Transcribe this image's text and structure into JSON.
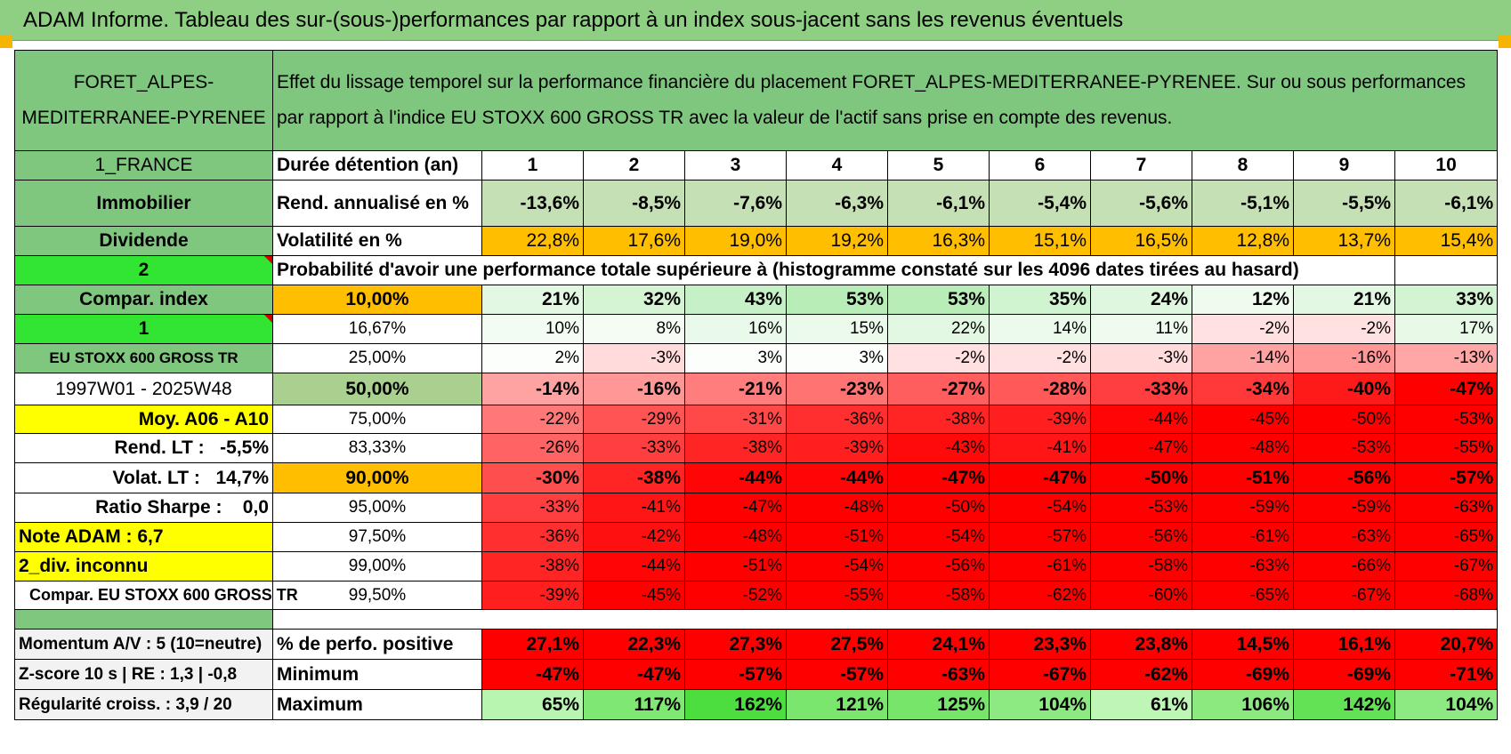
{
  "title": "ADAM Informe. Tableau des sur-(sous-)performances par rapport à un index sous-jacent sans les revenus éventuels",
  "fund_name": "FORET_ALPES-MEDITERRANEE-PYRENEE",
  "description": "Effet du lissage temporel sur la performance financière du placement FORET_ALPES-MEDITERRANEE-PYRENEE. Sur ou sous performances par rapport à l'indice EU STOXX 600 GROSS TR avec la valeur de l'actif sans prise en compte des revenus.",
  "left": {
    "country": "1_FRANCE",
    "category": "Immobilier",
    "dividend": "Dividende",
    "selector1": "2",
    "compar_index": "Compar. index",
    "selector2": "1",
    "index_name": "EU STOXX 600 GROSS TR",
    "period": "1997W01 - 2025W48",
    "moy": "Moy. A06 - A10",
    "rend_lt_label": "Rend. LT :",
    "rend_lt_value": "-5,5%",
    "volat_lt_label": "Volat. LT :",
    "volat_lt_value": "14,7%",
    "sharpe_label": "Ratio Sharpe :",
    "sharpe_value": "0,0",
    "note": "Note ADAM : 6,7",
    "div": "2_div. inconnu",
    "compar_full": "Compar. EU STOXX 600 GROSS TR"
  },
  "labels": {
    "duree": "Durée détention (an)",
    "rend": "Rend. annualisé en %",
    "vol": "Volatilité en %",
    "proba": "Probabilité d'avoir une performance totale supérieure à (histogramme constaté sur les 4096 dates tirées au hasard)",
    "perf_pos": "% de perfo. positive",
    "minimum": "Minimum",
    "maximum": "Maximum"
  },
  "years": [
    "1",
    "2",
    "3",
    "4",
    "5",
    "6",
    "7",
    "8",
    "9",
    "10"
  ],
  "rend": [
    "-13,6%",
    "-8,5%",
    "-7,6%",
    "-6,3%",
    "-6,1%",
    "-5,4%",
    "-5,6%",
    "-5,1%",
    "-5,5%",
    "-6,1%"
  ],
  "vol": [
    "22,8%",
    "17,6%",
    "19,0%",
    "19,2%",
    "16,3%",
    "15,1%",
    "16,5%",
    "12,8%",
    "13,7%",
    "15,4%"
  ],
  "quantiles": [
    {
      "q": "10,00%",
      "vals": [
        "21%",
        "32%",
        "43%",
        "53%",
        "53%",
        "35%",
        "24%",
        "12%",
        "21%",
        "33%"
      ]
    },
    {
      "q": "16,67%",
      "vals": [
        "10%",
        "8%",
        "16%",
        "15%",
        "22%",
        "14%",
        "11%",
        "-2%",
        "-2%",
        "17%"
      ]
    },
    {
      "q": "25,00%",
      "vals": [
        "2%",
        "-3%",
        "3%",
        "3%",
        "-2%",
        "-2%",
        "-3%",
        "-14%",
        "-16%",
        "-13%"
      ]
    },
    {
      "q": "50,00%",
      "vals": [
        "-14%",
        "-16%",
        "-21%",
        "-23%",
        "-27%",
        "-28%",
        "-33%",
        "-34%",
        "-40%",
        "-47%"
      ]
    },
    {
      "q": "75,00%",
      "vals": [
        "-22%",
        "-29%",
        "-31%",
        "-36%",
        "-38%",
        "-39%",
        "-44%",
        "-45%",
        "-50%",
        "-53%"
      ]
    },
    {
      "q": "83,33%",
      "vals": [
        "-26%",
        "-33%",
        "-38%",
        "-39%",
        "-43%",
        "-41%",
        "-47%",
        "-48%",
        "-53%",
        "-55%"
      ]
    },
    {
      "q": "90,00%",
      "vals": [
        "-30%",
        "-38%",
        "-44%",
        "-44%",
        "-47%",
        "-47%",
        "-50%",
        "-51%",
        "-56%",
        "-57%"
      ]
    },
    {
      "q": "95,00%",
      "vals": [
        "-33%",
        "-41%",
        "-47%",
        "-48%",
        "-50%",
        "-54%",
        "-53%",
        "-59%",
        "-59%",
        "-63%"
      ]
    },
    {
      "q": "97,50%",
      "vals": [
        "-36%",
        "-42%",
        "-48%",
        "-51%",
        "-54%",
        "-57%",
        "-56%",
        "-61%",
        "-63%",
        "-65%"
      ]
    },
    {
      "q": "99,00%",
      "vals": [
        "-38%",
        "-44%",
        "-51%",
        "-54%",
        "-56%",
        "-61%",
        "-58%",
        "-63%",
        "-66%",
        "-67%"
      ]
    },
    {
      "q": "99,50%",
      "vals": [
        "-39%",
        "-45%",
        "-52%",
        "-55%",
        "-58%",
        "-62%",
        "-60%",
        "-65%",
        "-67%",
        "-68%"
      ]
    }
  ],
  "bottom": {
    "momentum": "Momentum A/V : 5 (10=neutre)",
    "zscore": "Z-score 10 s | RE : 1,3 | -0,8",
    "regularite": "Régularité croiss. : 3,9 / 20",
    "perf_pos": [
      "27,1%",
      "22,3%",
      "27,3%",
      "27,5%",
      "24,1%",
      "23,3%",
      "23,8%",
      "14,5%",
      "16,1%",
      "20,7%"
    ],
    "minimum": [
      "-47%",
      "-47%",
      "-57%",
      "-57%",
      "-63%",
      "-67%",
      "-62%",
      "-69%",
      "-69%",
      "-71%"
    ],
    "maximum": [
      "65%",
      "117%",
      "162%",
      "121%",
      "125%",
      "104%",
      "61%",
      "106%",
      "142%",
      "104%"
    ]
  },
  "colors": {
    "header_green": "#7fc67e",
    "orange": "#ffbf00",
    "yellow": "#ffff00",
    "red": "#ff0000",
    "lime": "#33e533"
  }
}
